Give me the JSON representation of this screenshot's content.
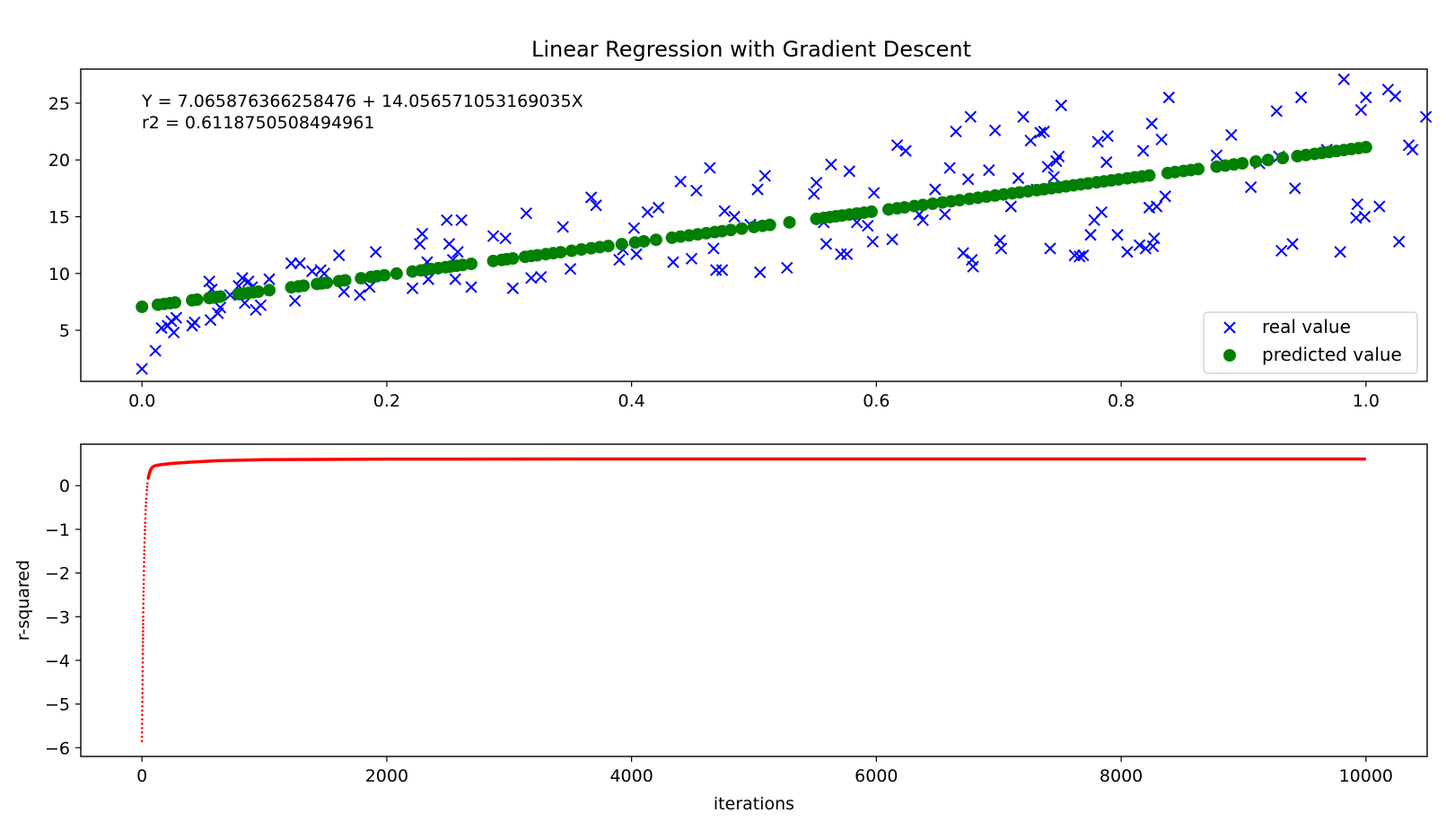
{
  "chart_data": [
    {
      "type": "scatter",
      "title": "Linear Regression with Gradient Descent",
      "xlabel": "",
      "ylabel": "",
      "xlim": [
        -0.05,
        1.05
      ],
      "ylim": [
        0.5,
        28.0
      ],
      "xticks": [
        "0.0",
        "0.2",
        "0.4",
        "0.6",
        "0.8",
        "1.0"
      ],
      "yticks": [
        "5",
        "10",
        "15",
        "20",
        "25"
      ],
      "xtick_values": [
        0.0,
        0.2,
        0.4,
        0.6,
        0.8,
        1.0
      ],
      "ytick_values": [
        5,
        10,
        15,
        20,
        25
      ],
      "annotation": {
        "equation": "Y = 7.065876366258476 + 14.056571053169035X",
        "r2": "r2 = 0.6118750508494961"
      },
      "fit": {
        "intercept": 7.065876366258476,
        "slope": 14.056571053169035
      },
      "legend": {
        "position": "lower-right",
        "entries": [
          "real value",
          "predicted value"
        ]
      },
      "grid": false,
      "series": [
        {
          "name": "real value",
          "marker": "x",
          "color": "#0000ff",
          "points": [
            [
              0.0,
              1.6
            ],
            [
              0.011,
              3.2
            ],
            [
              0.016,
              5.2
            ],
            [
              0.021,
              5.4
            ],
            [
              0.024,
              5.8
            ],
            [
              0.026,
              4.8
            ],
            [
              0.028,
              6.1
            ],
            [
              0.041,
              5.4
            ],
            [
              0.043,
              5.7
            ],
            [
              0.055,
              9.3
            ],
            [
              0.057,
              8.6
            ],
            [
              0.056,
              5.9
            ],
            [
              0.062,
              6.5
            ],
            [
              0.064,
              7.0
            ],
            [
              0.072,
              8.1
            ],
            [
              0.079,
              8.9
            ],
            [
              0.082,
              9.6
            ],
            [
              0.084,
              7.4
            ],
            [
              0.087,
              9.3
            ],
            [
              0.09,
              8.8
            ],
            [
              0.093,
              6.8
            ],
            [
              0.097,
              7.2
            ],
            [
              0.104,
              9.5
            ],
            [
              0.122,
              10.9
            ],
            [
              0.125,
              7.6
            ],
            [
              0.129,
              10.9
            ],
            [
              0.139,
              10.2
            ],
            [
              0.146,
              10.3
            ],
            [
              0.149,
              10.0
            ],
            [
              0.161,
              11.6
            ],
            [
              0.165,
              8.4
            ],
            [
              0.178,
              8.1
            ],
            [
              0.186,
              8.8
            ],
            [
              0.191,
              11.9
            ],
            [
              0.221,
              8.7
            ],
            [
              0.227,
              12.6
            ],
            [
              0.229,
              13.5
            ],
            [
              0.233,
              11.0
            ],
            [
              0.234,
              9.5
            ],
            [
              0.249,
              14.7
            ],
            [
              0.251,
              12.6
            ],
            [
              0.254,
              11.2
            ],
            [
              0.256,
              9.5
            ],
            [
              0.258,
              11.9
            ],
            [
              0.261,
              14.7
            ],
            [
              0.269,
              8.8
            ],
            [
              0.287,
              13.3
            ],
            [
              0.297,
              13.1
            ],
            [
              0.303,
              8.7
            ],
            [
              0.314,
              15.3
            ],
            [
              0.318,
              9.6
            ],
            [
              0.326,
              9.7
            ],
            [
              0.344,
              14.1
            ],
            [
              0.35,
              10.4
            ],
            [
              0.367,
              16.7
            ],
            [
              0.371,
              16.0
            ],
            [
              0.39,
              11.2
            ],
            [
              0.393,
              12.1
            ],
            [
              0.402,
              14.0
            ],
            [
              0.404,
              11.7
            ],
            [
              0.413,
              15.4
            ],
            [
              0.422,
              15.8
            ],
            [
              0.434,
              11.0
            ],
            [
              0.44,
              18.1
            ],
            [
              0.449,
              11.3
            ],
            [
              0.453,
              17.3
            ],
            [
              0.464,
              19.3
            ],
            [
              0.467,
              12.2
            ],
            [
              0.469,
              10.3
            ],
            [
              0.474,
              10.3
            ],
            [
              0.476,
              15.5
            ],
            [
              0.484,
              15.0
            ],
            [
              0.497,
              14.3
            ],
            [
              0.503,
              17.4
            ],
            [
              0.505,
              10.1
            ],
            [
              0.509,
              18.6
            ],
            [
              0.527,
              10.5
            ],
            [
              0.549,
              17.0
            ],
            [
              0.551,
              18.0
            ],
            [
              0.557,
              14.5
            ],
            [
              0.559,
              12.6
            ],
            [
              0.563,
              19.6
            ],
            [
              0.571,
              11.7
            ],
            [
              0.576,
              11.7
            ],
            [
              0.578,
              19.0
            ],
            [
              0.584,
              14.5
            ],
            [
              0.593,
              14.2
            ],
            [
              0.597,
              12.8
            ],
            [
              0.598,
              17.1
            ],
            [
              0.613,
              13.0
            ],
            [
              0.617,
              21.3
            ],
            [
              0.624,
              20.8
            ],
            [
              0.635,
              15.2
            ],
            [
              0.638,
              14.7
            ],
            [
              0.648,
              17.4
            ],
            [
              0.656,
              15.2
            ],
            [
              0.66,
              19.3
            ],
            [
              0.665,
              22.5
            ],
            [
              0.671,
              11.8
            ],
            [
              0.675,
              18.3
            ],
            [
              0.677,
              23.8
            ],
            [
              0.678,
              11.2
            ],
            [
              0.679,
              10.6
            ],
            [
              0.692,
              19.1
            ],
            [
              0.697,
              22.6
            ],
            [
              0.701,
              12.9
            ],
            [
              0.702,
              12.2
            ],
            [
              0.71,
              15.9
            ],
            [
              0.716,
              18.4
            ],
            [
              0.72,
              23.8
            ],
            [
              0.726,
              21.7
            ],
            [
              0.731,
              17.4
            ],
            [
              0.734,
              22.4
            ],
            [
              0.737,
              22.5
            ],
            [
              0.74,
              19.4
            ],
            [
              0.742,
              12.2
            ],
            [
              0.745,
              18.5
            ],
            [
              0.747,
              19.9
            ],
            [
              0.749,
              20.3
            ],
            [
              0.751,
              24.8
            ],
            [
              0.762,
              11.6
            ],
            [
              0.766,
              11.5
            ],
            [
              0.769,
              11.6
            ],
            [
              0.775,
              13.4
            ],
            [
              0.778,
              14.7
            ],
            [
              0.781,
              21.6
            ],
            [
              0.784,
              15.4
            ],
            [
              0.789,
              22.1
            ],
            [
              0.788,
              19.8
            ],
            [
              0.797,
              13.4
            ],
            [
              0.805,
              11.9
            ],
            [
              0.815,
              12.5
            ],
            [
              0.818,
              20.8
            ],
            [
              0.82,
              12.2
            ],
            [
              0.823,
              15.8
            ],
            [
              0.825,
              23.2
            ],
            [
              0.826,
              12.4
            ],
            [
              0.827,
              13.1
            ],
            [
              0.829,
              15.9
            ],
            [
              0.833,
              21.8
            ],
            [
              0.836,
              16.8
            ],
            [
              0.839,
              25.5
            ],
            [
              0.878,
              20.4
            ],
            [
              0.89,
              22.2
            ],
            [
              0.906,
              17.6
            ],
            [
              0.913,
              19.7
            ],
            [
              0.927,
              24.3
            ],
            [
              0.929,
              20.3
            ],
            [
              0.931,
              12.0
            ],
            [
              0.94,
              12.6
            ],
            [
              0.942,
              17.5
            ],
            [
              0.947,
              25.5
            ],
            [
              0.968,
              20.9
            ],
            [
              0.979,
              11.9
            ],
            [
              0.982,
              27.1
            ],
            [
              0.992,
              14.9
            ],
            [
              0.993,
              16.1
            ],
            [
              0.996,
              24.4
            ],
            [
              1.0,
              25.5
            ],
            [
              0.999,
              15.0
            ],
            [
              1.011,
              15.9
            ],
            [
              1.018,
              26.2
            ],
            [
              1.024,
              25.6
            ],
            [
              1.027,
              12.8
            ],
            [
              1.035,
              21.3
            ],
            [
              1.038,
              20.9
            ],
            [
              1.049,
              23.8
            ]
          ]
        },
        {
          "name": "predicted value",
          "marker": "o",
          "color": "#008000",
          "x": [
            0.0,
            0.013,
            0.018,
            0.023,
            0.027,
            0.041,
            0.045,
            0.055,
            0.058,
            0.061,
            0.064,
            0.079,
            0.083,
            0.087,
            0.091,
            0.095,
            0.104,
            0.122,
            0.128,
            0.132,
            0.143,
            0.147,
            0.151,
            0.161,
            0.166,
            0.179,
            0.187,
            0.192,
            0.198,
            0.208,
            0.221,
            0.228,
            0.232,
            0.236,
            0.242,
            0.248,
            0.252,
            0.257,
            0.262,
            0.269,
            0.287,
            0.294,
            0.298,
            0.303,
            0.313,
            0.318,
            0.323,
            0.33,
            0.336,
            0.342,
            0.351,
            0.359,
            0.367,
            0.374,
            0.381,
            0.392,
            0.403,
            0.41,
            0.42,
            0.433,
            0.44,
            0.447,
            0.454,
            0.461,
            0.468,
            0.474,
            0.481,
            0.49,
            0.5,
            0.507,
            0.513,
            0.529,
            0.551,
            0.557,
            0.562,
            0.567,
            0.572,
            0.578,
            0.584,
            0.59,
            0.596,
            0.61,
            0.617,
            0.623,
            0.631,
            0.638,
            0.646,
            0.654,
            0.661,
            0.668,
            0.676,
            0.683,
            0.69,
            0.697,
            0.704,
            0.711,
            0.717,
            0.724,
            0.731,
            0.737,
            0.743,
            0.749,
            0.755,
            0.761,
            0.767,
            0.773,
            0.78,
            0.786,
            0.792,
            0.798,
            0.805,
            0.811,
            0.817,
            0.823,
            0.838,
            0.844,
            0.851,
            0.857,
            0.863,
            0.878,
            0.885,
            0.892,
            0.899,
            0.91,
            0.92,
            0.932,
            0.944,
            0.951,
            0.958,
            0.964,
            0.97,
            0.976,
            0.982,
            0.988,
            0.994,
            1.0
          ]
        }
      ]
    },
    {
      "type": "line",
      "title": "",
      "xlabel": "iterations",
      "ylabel": "r-squared",
      "xlim": [
        -500,
        10500
      ],
      "ylim": [
        -6.2,
        0.95
      ],
      "xticks": [
        "0",
        "2000",
        "4000",
        "6000",
        "8000",
        "10000"
      ],
      "yticks": [
        "0",
        "−1",
        "−2",
        "−3",
        "−4",
        "−5",
        "−6"
      ],
      "xtick_values": [
        0,
        2000,
        4000,
        6000,
        8000,
        10000
      ],
      "ytick_values": [
        0,
        -1,
        -2,
        -3,
        -4,
        -5,
        -6
      ],
      "grid": false,
      "series": [
        {
          "name": "r-squared",
          "color": "#ff0000",
          "style": "dotted",
          "points": [
            [
              0,
              -5.85
            ],
            [
              1,
              -5.55
            ],
            [
              2,
              -5.25
            ],
            [
              3,
              -4.95
            ],
            [
              4,
              -4.65
            ],
            [
              5,
              -4.35
            ],
            [
              6,
              -4.05
            ],
            [
              7,
              -3.75
            ],
            [
              8,
              -3.5
            ],
            [
              9,
              -3.25
            ],
            [
              10,
              -3.0
            ],
            [
              12,
              -2.6
            ],
            [
              14,
              -2.25
            ],
            [
              16,
              -1.95
            ],
            [
              18,
              -1.65
            ],
            [
              20,
              -1.4
            ],
            [
              23,
              -1.1
            ],
            [
              26,
              -0.85
            ],
            [
              30,
              -0.55
            ],
            [
              35,
              -0.3
            ],
            [
              40,
              -0.1
            ],
            [
              45,
              0.05
            ],
            [
              50,
              0.16
            ],
            [
              60,
              0.28
            ],
            [
              70,
              0.36
            ],
            [
              80,
              0.41
            ],
            [
              100,
              0.45
            ],
            [
              150,
              0.48
            ],
            [
              250,
              0.51
            ],
            [
              400,
              0.54
            ],
            [
              600,
              0.57
            ],
            [
              1000,
              0.595
            ],
            [
              2000,
              0.608
            ],
            [
              4000,
              0.611
            ],
            [
              6000,
              0.6118
            ],
            [
              8000,
              0.6119
            ],
            [
              10000,
              0.6119
            ]
          ]
        }
      ]
    }
  ]
}
